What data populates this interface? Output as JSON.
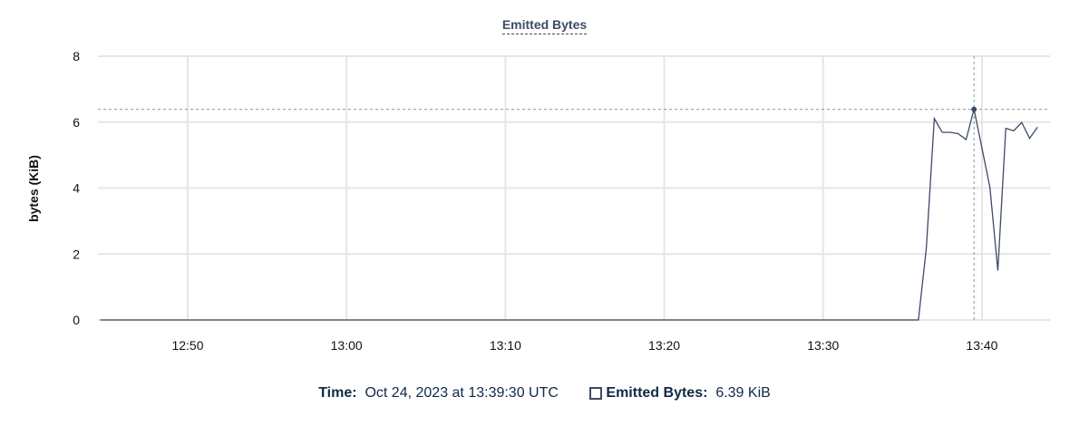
{
  "chart_data": {
    "type": "line",
    "title": "Emitted Bytes",
    "ylabel": "bytes (KiB)",
    "xlabel": "",
    "ylim": [
      0,
      8
    ],
    "yticks": [
      "0",
      "2",
      "4",
      "6",
      "8"
    ],
    "xticks": [
      "12:50",
      "13:00",
      "13:10",
      "13:20",
      "13:30",
      "13:40"
    ],
    "xlim": [
      "12:44:21",
      "13:44:17"
    ],
    "grid": true,
    "color": "#3d4b66",
    "series": [
      {
        "name": "Emitted Bytes",
        "points": [
          [
            "12:44:30",
            0
          ],
          [
            "13:36:00",
            0
          ],
          [
            "13:36:30",
            2.19
          ],
          [
            "13:37:00",
            6.11
          ],
          [
            "13:37:30",
            5.69
          ],
          [
            "13:38:00",
            5.69
          ],
          [
            "13:38:30",
            5.65
          ],
          [
            "13:39:00",
            5.47
          ],
          [
            "13:39:30",
            6.39
          ],
          [
            "13:40:00",
            5.21
          ],
          [
            "13:40:30",
            4.02
          ],
          [
            "13:41:00",
            1.5
          ],
          [
            "13:41:30",
            5.81
          ],
          [
            "13:42:00",
            5.74
          ],
          [
            "13:42:30",
            5.99
          ],
          [
            "13:43:00",
            5.51
          ],
          [
            "13:43:30",
            5.85
          ]
        ]
      }
    ],
    "hover": {
      "time": "13:39:30",
      "value": 6.39
    }
  },
  "legend": {
    "time_label": "Time:",
    "time_value": "Oct 24, 2023 at 13:39:30 UTC",
    "series_label": "Emitted Bytes:",
    "series_value": "6.39 KiB"
  }
}
